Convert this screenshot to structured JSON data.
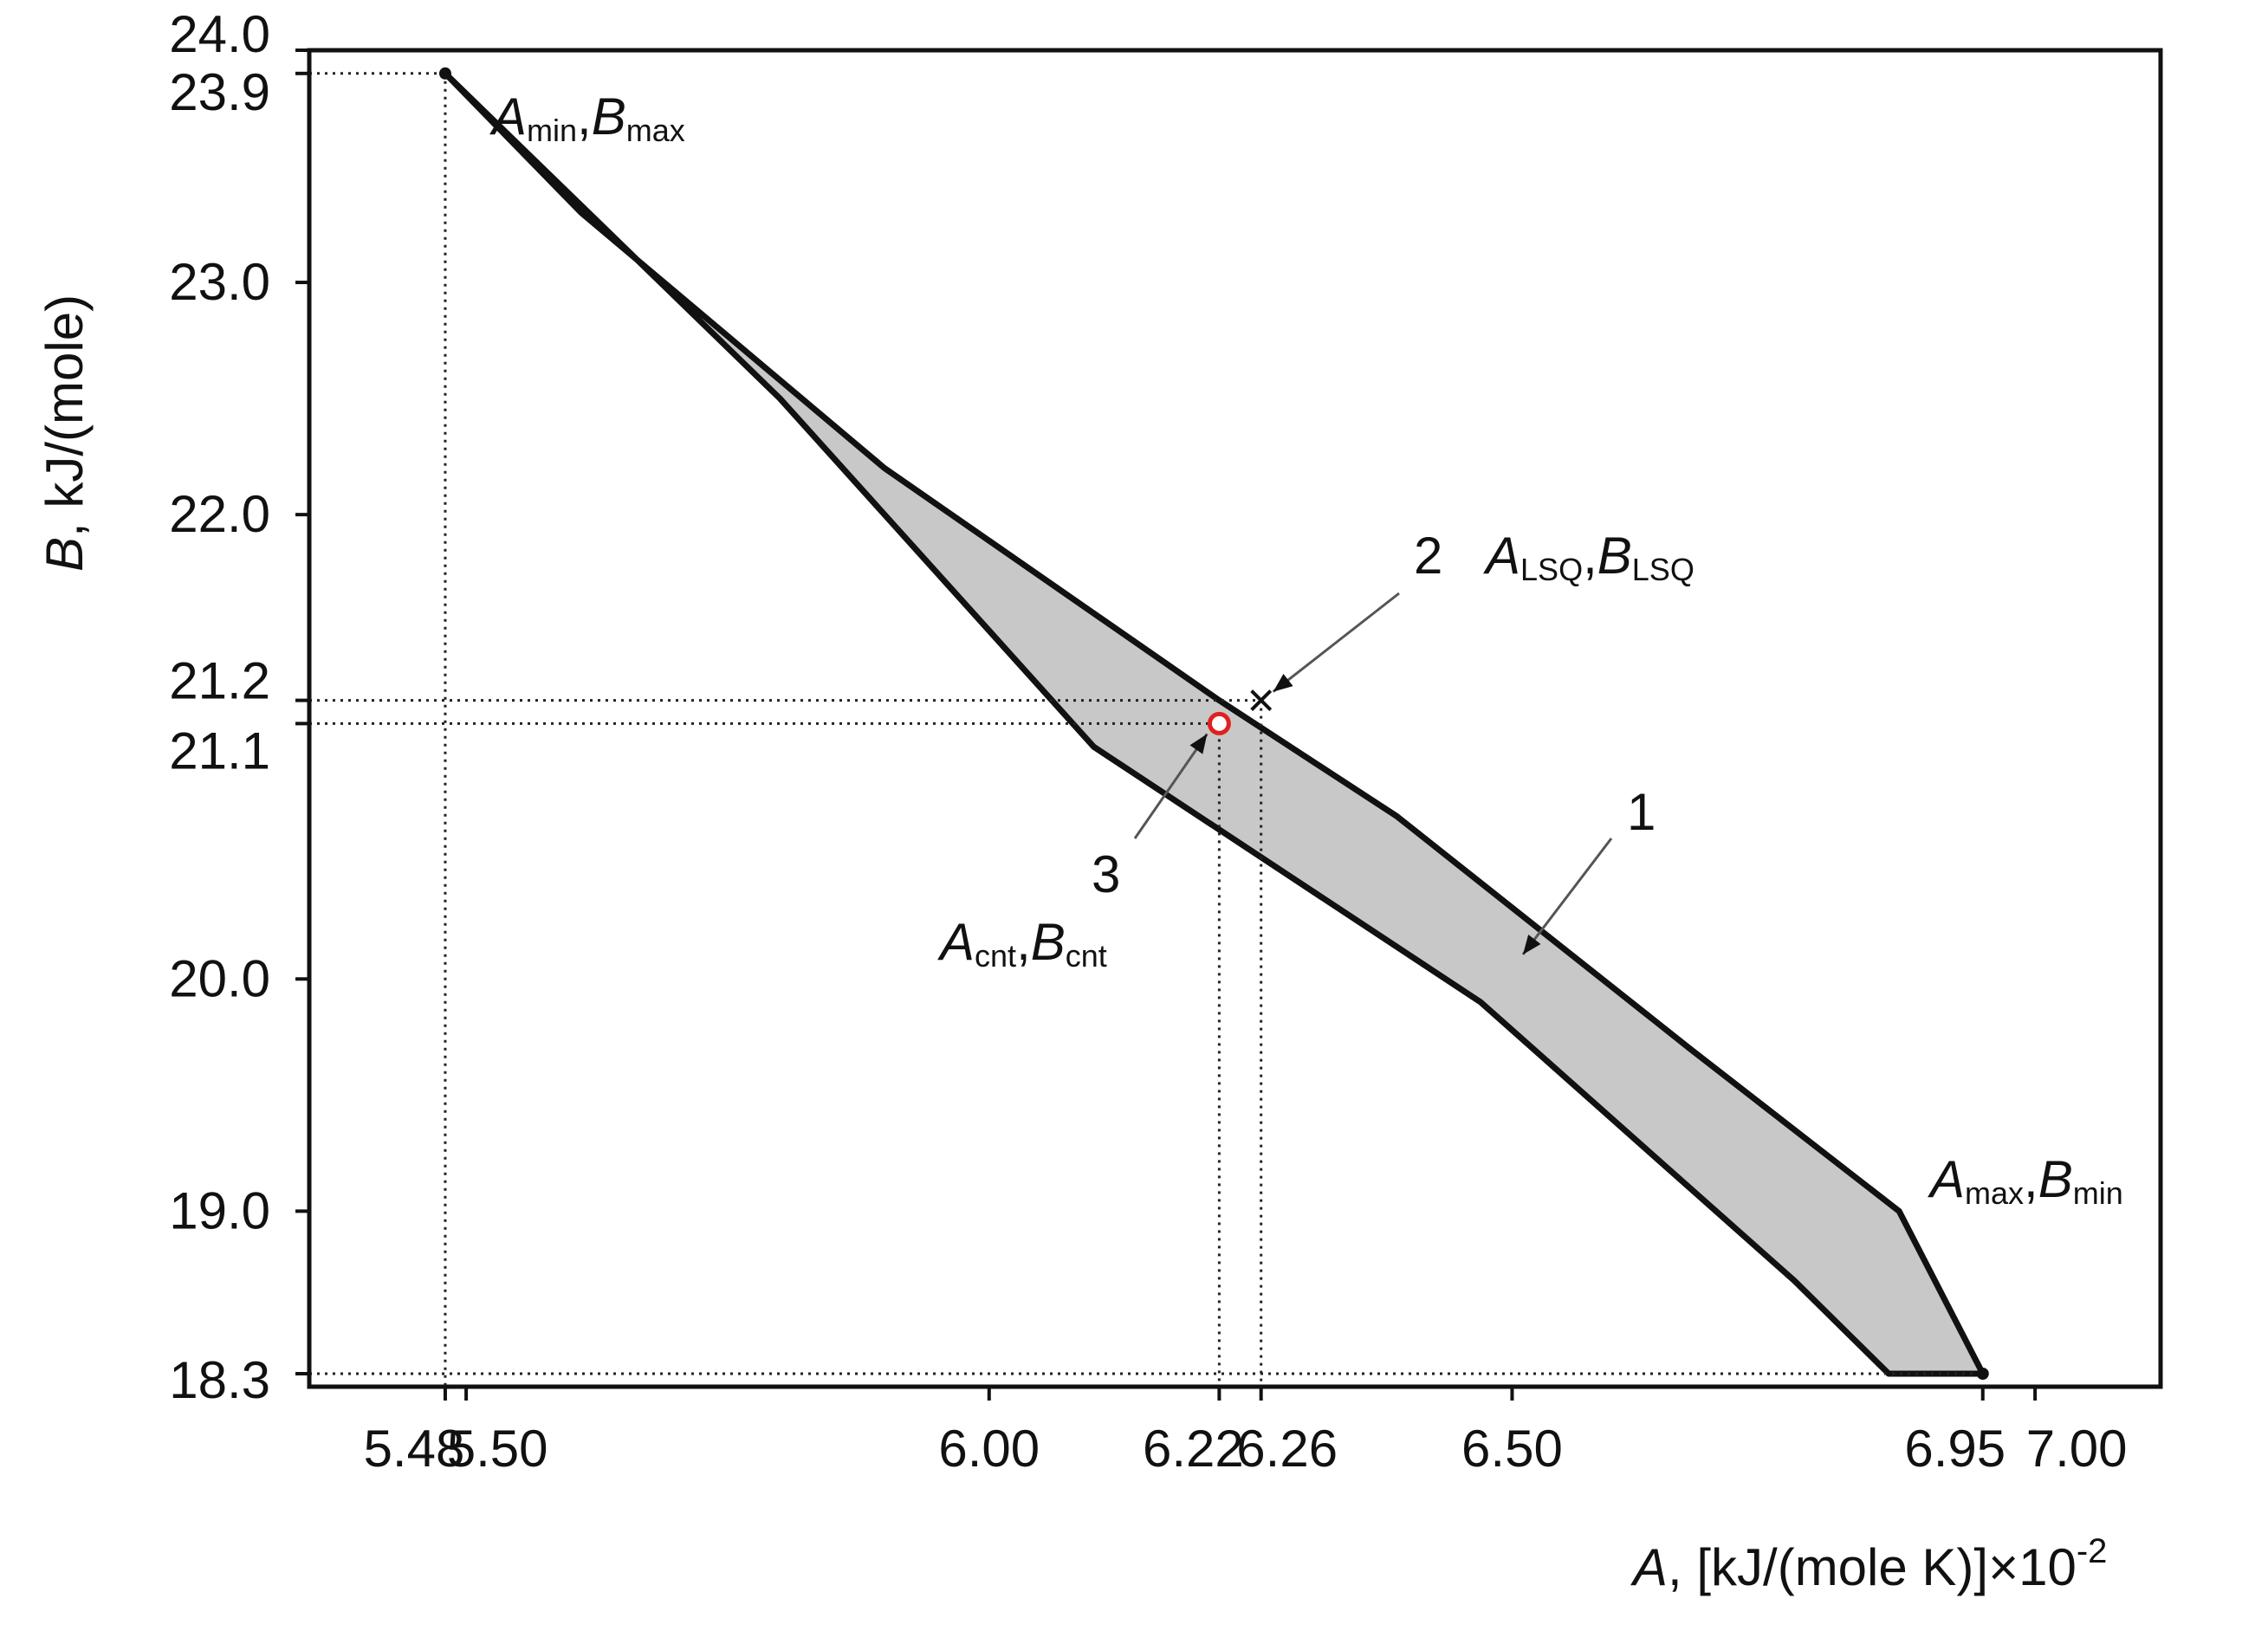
{
  "chart_data": {
    "type": "scatter",
    "title": "",
    "xlabel": {
      "var": "A",
      "rest": ", [kJ/(mole K)]×10",
      "exp": "-2"
    },
    "ylabel": {
      "var": "B",
      "rest": ", kJ/(mole)"
    },
    "xlim": [
      5.35,
      7.12
    ],
    "ylim": [
      18.3,
      24.0
    ],
    "grid": false,
    "x_ticks": [
      {
        "value": 5.48,
        "label": "5.48"
      },
      {
        "value": 5.5,
        "label": "5.50"
      },
      {
        "value": 6.0,
        "label": "6.00"
      },
      {
        "value": 6.22,
        "label": "6.22"
      },
      {
        "value": 6.26,
        "label": "6.26"
      },
      {
        "value": 6.5,
        "label": "6.50"
      },
      {
        "value": 6.95,
        "label": "6.95"
      },
      {
        "value": 7.0,
        "label": "7.00"
      }
    ],
    "y_ticks": [
      {
        "value": 24.0,
        "label": "24.0"
      },
      {
        "value": 23.9,
        "label": "23.9"
      },
      {
        "value": 23.0,
        "label": "23.0"
      },
      {
        "value": 22.0,
        "label": "22.0"
      },
      {
        "value": 21.2,
        "label": "21.2"
      },
      {
        "value": 21.1,
        "label": "21.1"
      },
      {
        "value": 20.0,
        "label": "20.0"
      },
      {
        "value": 19.0,
        "label": "19.0"
      },
      {
        "value": 18.3,
        "label": "18.3"
      }
    ],
    "region": {
      "fill": "#c8c8c8",
      "stroke": "#111111",
      "polygon": [
        [
          5.48,
          23.9
        ],
        [
          5.61,
          23.3
        ],
        [
          5.9,
          22.2
        ],
        [
          6.22,
          21.2
        ],
        [
          6.39,
          20.7
        ],
        [
          6.53,
          20.2
        ],
        [
          6.67,
          19.7
        ],
        [
          6.87,
          19.0
        ],
        [
          6.95,
          18.3
        ],
        [
          6.86,
          18.3
        ],
        [
          6.77,
          18.7
        ],
        [
          6.47,
          19.9
        ],
        [
          6.1,
          21.0
        ],
        [
          5.8,
          22.5
        ],
        [
          5.48,
          23.9
        ]
      ]
    },
    "points": [
      {
        "name": "A_min,B_max",
        "x": 5.48,
        "y": 23.9,
        "marker": "dot"
      },
      {
        "name": "A_max,B_min",
        "x": 6.95,
        "y": 18.3,
        "marker": "dot"
      },
      {
        "name": "A_LSQ,B_LSQ",
        "x": 6.26,
        "y": 21.2,
        "marker": "x"
      },
      {
        "name": "A_cnt,B_cnt",
        "x": 6.22,
        "y": 21.1,
        "marker": "open-circle",
        "color": "#e02020"
      }
    ],
    "annotations": {
      "amin_bmax": {
        "a": "A",
        "a_sub": "min",
        "sep": ",",
        "b": "B",
        "b_sub": "max"
      },
      "amax_bmin": {
        "a": "A",
        "a_sub": "max",
        "sep": ",",
        "b": "B",
        "b_sub": "min"
      },
      "alsq_blsq": {
        "num": "2",
        "a": "A",
        "a_sub": "LSQ",
        "sep": ",",
        "b": "B",
        "b_sub": "LSQ"
      },
      "acnt_bcnt": {
        "num": "3",
        "a": "A",
        "a_sub": "cnt",
        "sep": ",",
        "b": "B",
        "b_sub": "cnt"
      },
      "region": {
        "num": "1"
      }
    }
  }
}
